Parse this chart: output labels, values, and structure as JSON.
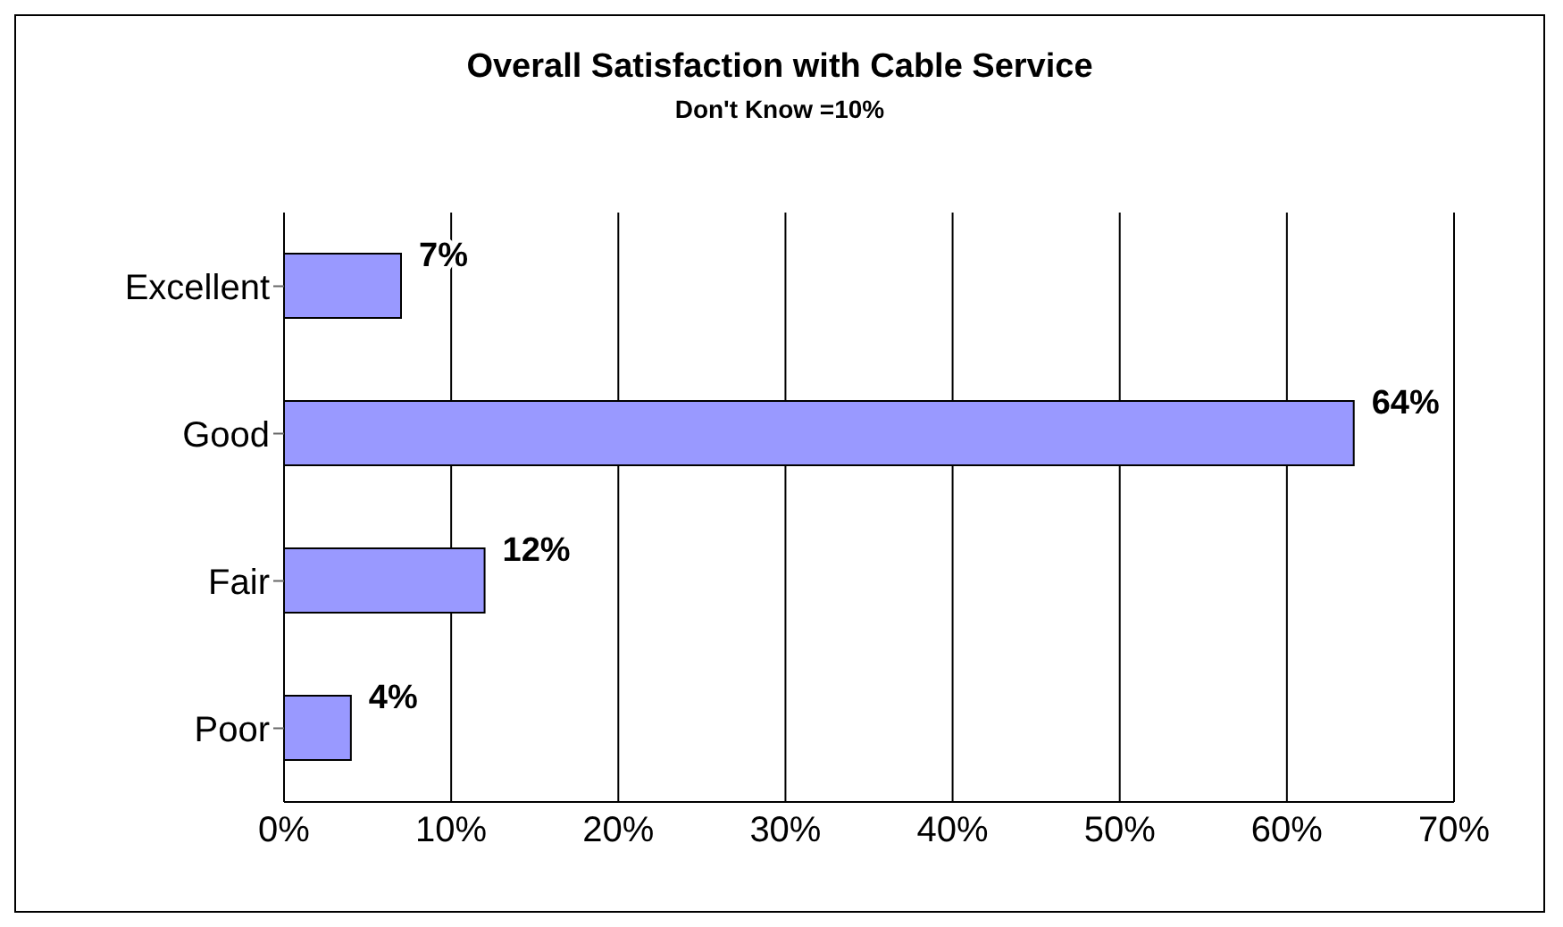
{
  "chart_data": {
    "type": "bar",
    "orientation": "horizontal",
    "title": "Overall Satisfaction with Cable Service",
    "subtitle": "Don't Know =10%",
    "categories": [
      "Excellent",
      "Good",
      "Fair",
      "Poor"
    ],
    "values": [
      7,
      64,
      12,
      4
    ],
    "value_labels": [
      "7%",
      "64%",
      "12%",
      "4%"
    ],
    "color": "#9999ff",
    "xlim": [
      0,
      70
    ],
    "xticks": [
      {
        "value": 0,
        "label": "0%"
      },
      {
        "value": 10,
        "label": "10%"
      },
      {
        "value": 20,
        "label": "20%"
      },
      {
        "value": 30,
        "label": "30%"
      },
      {
        "value": 40,
        "label": "40%"
      },
      {
        "value": 50,
        "label": "50%"
      },
      {
        "value": 60,
        "label": "60%"
      },
      {
        "value": 70,
        "label": "70%"
      }
    ],
    "grid": "x"
  }
}
